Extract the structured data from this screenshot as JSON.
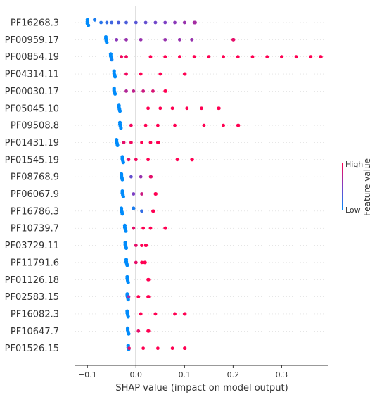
{
  "chart_data": {
    "type": "scatter",
    "subtype": "shap-beeswarm",
    "xlabel": "SHAP value (impact on model output)",
    "xlim": [
      -0.125,
      0.395
    ],
    "xticks": [
      -0.1,
      0.0,
      0.1,
      0.2,
      0.3
    ],
    "xtick_labels": [
      "−0.1",
      "0.0",
      "0.1",
      "0.2",
      "0.3"
    ],
    "zero_line": 0.0,
    "features": [
      {
        "name": "PF16268.3",
        "points": [
          [
            -0.1,
            0
          ],
          [
            -0.1,
            0
          ],
          [
            -0.1,
            0
          ],
          [
            -0.098,
            0
          ],
          [
            -0.085,
            0.1
          ],
          [
            -0.072,
            0.15
          ],
          [
            -0.06,
            0.2
          ],
          [
            -0.05,
            0.25
          ],
          [
            -0.036,
            0.3
          ],
          [
            -0.02,
            0.3
          ],
          [
            0.0,
            0.35
          ],
          [
            0.02,
            0.4
          ],
          [
            0.04,
            0.45
          ],
          [
            0.06,
            0.5
          ],
          [
            0.08,
            0.55
          ],
          [
            0.1,
            0.6
          ],
          [
            0.12,
            0.65
          ],
          [
            0.121,
            0.65
          ],
          [
            0.122,
            0.65
          ]
        ]
      },
      {
        "name": "PF00959.17",
        "points": [
          [
            -0.062,
            0
          ],
          [
            -0.062,
            0
          ],
          [
            -0.061,
            0
          ],
          [
            -0.06,
            0
          ],
          [
            -0.04,
            0.55
          ],
          [
            -0.02,
            0.6
          ],
          [
            0.01,
            0.6
          ],
          [
            0.06,
            0.6
          ],
          [
            0.09,
            0.6
          ],
          [
            0.115,
            0.6
          ],
          [
            0.2,
            0.9
          ],
          [
            0.201,
            0.9
          ]
        ]
      },
      {
        "name": "PF00854.19",
        "points": [
          [
            -0.052,
            0
          ],
          [
            -0.052,
            0
          ],
          [
            -0.051,
            0
          ],
          [
            -0.05,
            0.05
          ],
          [
            -0.03,
            0.95
          ],
          [
            -0.02,
            0.95
          ],
          [
            0.03,
            1
          ],
          [
            0.06,
            1
          ],
          [
            0.09,
            1
          ],
          [
            0.12,
            1
          ],
          [
            0.15,
            1
          ],
          [
            0.18,
            1
          ],
          [
            0.21,
            1
          ],
          [
            0.24,
            1
          ],
          [
            0.27,
            1
          ],
          [
            0.3,
            1
          ],
          [
            0.33,
            1
          ],
          [
            0.36,
            1
          ],
          [
            0.38,
            1
          ],
          [
            0.381,
            1
          ]
        ]
      },
      {
        "name": "PF04314.11",
        "points": [
          [
            -0.045,
            0
          ],
          [
            -0.045,
            0
          ],
          [
            -0.044,
            0
          ],
          [
            -0.043,
            0
          ],
          [
            -0.02,
            0.95
          ],
          [
            0.01,
            1
          ],
          [
            0.05,
            1
          ],
          [
            0.1,
            1
          ],
          [
            0.101,
            1
          ]
        ]
      },
      {
        "name": "PF00030.17",
        "points": [
          [
            -0.045,
            0
          ],
          [
            -0.045,
            0
          ],
          [
            -0.044,
            0
          ],
          [
            -0.043,
            0
          ],
          [
            -0.02,
            0.7
          ],
          [
            -0.005,
            0.75
          ],
          [
            0.015,
            0.8
          ],
          [
            0.035,
            0.85
          ],
          [
            0.06,
            1
          ],
          [
            0.061,
            1
          ]
        ]
      },
      {
        "name": "PF05045.10",
        "points": [
          [
            -0.035,
            0
          ],
          [
            -0.035,
            0
          ],
          [
            -0.034,
            0
          ],
          [
            -0.033,
            0
          ],
          [
            0.025,
            1
          ],
          [
            0.05,
            1
          ],
          [
            0.075,
            1
          ],
          [
            0.105,
            1
          ],
          [
            0.135,
            1
          ],
          [
            0.17,
            1
          ],
          [
            0.171,
            1
          ]
        ]
      },
      {
        "name": "PF09508.8",
        "points": [
          [
            -0.033,
            0
          ],
          [
            -0.033,
            0
          ],
          [
            -0.032,
            0
          ],
          [
            -0.031,
            0
          ],
          [
            -0.01,
            0.95
          ],
          [
            0.02,
            1
          ],
          [
            0.045,
            1
          ],
          [
            0.08,
            1
          ],
          [
            0.14,
            1
          ],
          [
            0.18,
            1
          ],
          [
            0.21,
            1
          ],
          [
            0.211,
            1
          ]
        ]
      },
      {
        "name": "PF01431.19",
        "points": [
          [
            -0.04,
            0
          ],
          [
            -0.04,
            0
          ],
          [
            -0.039,
            0
          ],
          [
            -0.038,
            0
          ],
          [
            -0.025,
            0.9
          ],
          [
            -0.01,
            0.95
          ],
          [
            0.012,
            1
          ],
          [
            0.03,
            1
          ],
          [
            0.045,
            1
          ],
          [
            0.046,
            1
          ]
        ]
      },
      {
        "name": "PF01545.19",
        "points": [
          [
            -0.028,
            0
          ],
          [
            -0.028,
            0
          ],
          [
            -0.027,
            0
          ],
          [
            -0.026,
            0
          ],
          [
            -0.015,
            0.9
          ],
          [
            0.0,
            0.95
          ],
          [
            0.025,
            1
          ],
          [
            0.085,
            1
          ],
          [
            0.115,
            1
          ],
          [
            0.116,
            1
          ]
        ]
      },
      {
        "name": "PF08768.9",
        "points": [
          [
            -0.03,
            0
          ],
          [
            -0.03,
            0
          ],
          [
            -0.029,
            0
          ],
          [
            -0.028,
            0
          ],
          [
            -0.01,
            0.4
          ],
          [
            0.01,
            0.6
          ],
          [
            0.03,
            0.9
          ],
          [
            0.031,
            0.9
          ]
        ]
      },
      {
        "name": "PF06067.9",
        "points": [
          [
            -0.028,
            0
          ],
          [
            -0.028,
            0
          ],
          [
            -0.027,
            0
          ],
          [
            -0.026,
            0
          ],
          [
            -0.005,
            0.5
          ],
          [
            0.012,
            0.8
          ],
          [
            0.04,
            1
          ],
          [
            0.041,
            1
          ]
        ]
      },
      {
        "name": "PF16786.3",
        "points": [
          [
            -0.03,
            0
          ],
          [
            -0.03,
            0
          ],
          [
            -0.029,
            0
          ],
          [
            -0.028,
            0
          ],
          [
            -0.005,
            0.1
          ],
          [
            0.012,
            0.2
          ],
          [
            0.035,
            1
          ],
          [
            0.036,
            1
          ]
        ]
      },
      {
        "name": "PF10739.7",
        "points": [
          [
            -0.023,
            0
          ],
          [
            -0.023,
            0
          ],
          [
            -0.022,
            0
          ],
          [
            -0.021,
            0
          ],
          [
            -0.005,
            0.9
          ],
          [
            0.015,
            1
          ],
          [
            0.03,
            1
          ],
          [
            0.06,
            1
          ],
          [
            0.061,
            1
          ]
        ]
      },
      {
        "name": "PF03729.11",
        "points": [
          [
            -0.022,
            0
          ],
          [
            -0.022,
            0
          ],
          [
            -0.021,
            0
          ],
          [
            -0.02,
            0
          ],
          [
            0.0,
            0.9
          ],
          [
            0.012,
            1
          ],
          [
            0.02,
            1
          ],
          [
            0.021,
            1
          ]
        ]
      },
      {
        "name": "PF11791.6",
        "points": [
          [
            -0.02,
            0
          ],
          [
            -0.02,
            0
          ],
          [
            -0.019,
            0
          ],
          [
            -0.018,
            0
          ],
          [
            0.0,
            0.9
          ],
          [
            0.012,
            1
          ],
          [
            0.018,
            1
          ],
          [
            0.019,
            1
          ]
        ]
      },
      {
        "name": "PF01126.18",
        "points": [
          [
            -0.018,
            0
          ],
          [
            -0.018,
            0
          ],
          [
            -0.017,
            0
          ],
          [
            -0.016,
            0
          ],
          [
            0.025,
            1
          ],
          [
            0.026,
            1
          ]
        ]
      },
      {
        "name": "PF02583.15",
        "points": [
          [
            -0.018,
            0
          ],
          [
            -0.018,
            0
          ],
          [
            -0.017,
            0
          ],
          [
            -0.016,
            0
          ],
          [
            -0.015,
            0.6
          ],
          [
            0.005,
            1
          ],
          [
            0.025,
            1
          ],
          [
            0.026,
            1
          ]
        ]
      },
      {
        "name": "PF16082.3",
        "points": [
          [
            -0.018,
            0
          ],
          [
            -0.018,
            0
          ],
          [
            -0.017,
            0
          ],
          [
            -0.016,
            0
          ],
          [
            0.01,
            1
          ],
          [
            0.04,
            1
          ],
          [
            0.08,
            1
          ],
          [
            0.1,
            1
          ],
          [
            0.101,
            1
          ]
        ]
      },
      {
        "name": "PF10647.7",
        "points": [
          [
            -0.017,
            0
          ],
          [
            -0.017,
            0
          ],
          [
            -0.016,
            0
          ],
          [
            -0.015,
            0
          ],
          [
            0.005,
            0.9
          ],
          [
            0.025,
            1
          ],
          [
            0.026,
            1
          ]
        ]
      },
      {
        "name": "PF01526.15",
        "points": [
          [
            -0.016,
            0
          ],
          [
            -0.016,
            0
          ],
          [
            -0.015,
            0
          ],
          [
            -0.014,
            0.9
          ],
          [
            0.015,
            1
          ],
          [
            0.045,
            1
          ],
          [
            0.075,
            1
          ],
          [
            0.1,
            1
          ],
          [
            0.101,
            1
          ]
        ]
      }
    ],
    "colorbar": {
      "label": "Feature value",
      "high_label": "High",
      "low_label": "Low",
      "low_color": "#008bfb",
      "high_color": "#ff0052"
    }
  }
}
